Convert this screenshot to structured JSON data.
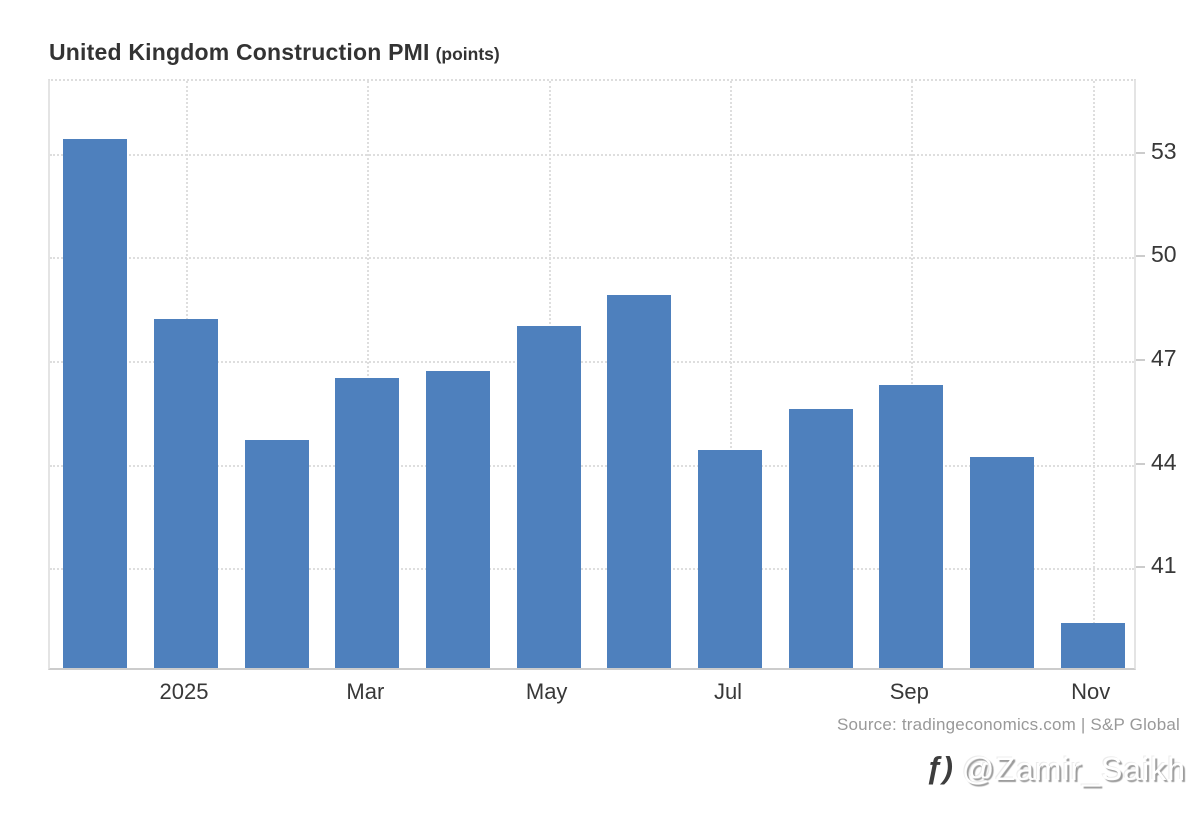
{
  "header": {
    "title": "United Kingdom Construction PMI",
    "units": "(points)"
  },
  "footer": {
    "source": "Source: tradingeconomics.com | S&P Global",
    "watermark_icon": "ƒ)",
    "watermark_handle": "@Zamir_Saikh"
  },
  "colors": {
    "bar": "#4e80bd",
    "grid": "#dedede",
    "axis": "#cccccc",
    "text": "#383838",
    "source_text": "#999999"
  },
  "chart_data": {
    "type": "bar",
    "title": "United Kingdom Construction PMI (points)",
    "xlabel": "",
    "ylabel": "points",
    "categories": [
      "",
      "2025",
      "",
      "Mar",
      "",
      "May",
      "",
      "Jul",
      "",
      "Sep",
      "",
      "Nov"
    ],
    "values": [
      53.3,
      48.1,
      44.6,
      46.4,
      46.6,
      47.9,
      48.8,
      44.3,
      45.5,
      46.2,
      44.1,
      39.3
    ],
    "x_tick_labels": [
      {
        "index": 1,
        "label": "2025"
      },
      {
        "index": 3,
        "label": "Mar"
      },
      {
        "index": 5,
        "label": "May"
      },
      {
        "index": 7,
        "label": "Jul"
      },
      {
        "index": 9,
        "label": "Sep"
      },
      {
        "index": 11,
        "label": "Nov"
      }
    ],
    "y_ticks": [
      53,
      50,
      47,
      44,
      41
    ],
    "ylim": [
      38,
      55.1
    ],
    "grid": "dotted",
    "legend": "none",
    "y_axis_side": "right"
  }
}
